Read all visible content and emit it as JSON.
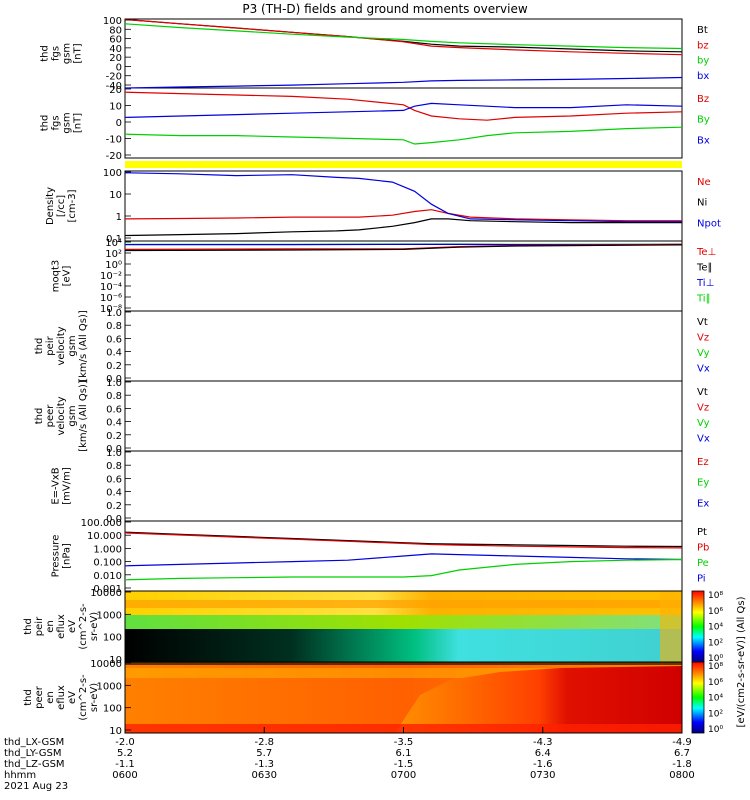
{
  "title": "P3 (TH-D) fields and ground moments overview",
  "colors": {
    "black": "#000000",
    "red": "#e00000",
    "green": "#00d000",
    "blue": "#0000e0",
    "yellow": "#ffff00",
    "axis": "#000000"
  },
  "time_axis": {
    "row_labels": [
      "thd_LX-GSM",
      "thd_LY-GSM",
      "thd_LZ-GSM",
      "hhmm"
    ],
    "date": "2021 Aug 23",
    "ticks": [
      {
        "lx": "-2.0",
        "ly": "5.2",
        "lz": "-1.1",
        "hhmm": "0600"
      },
      {
        "lx": "-2.8",
        "ly": "5.7",
        "lz": "-1.3",
        "hhmm": "0630"
      },
      {
        "lx": "-3.5",
        "ly": "6.1",
        "lz": "-1.5",
        "hhmm": "0700"
      },
      {
        "lx": "-4.3",
        "ly": "6.4",
        "lz": "-1.6",
        "hhmm": "0730"
      },
      {
        "lx": "-4.9",
        "ly": "6.7",
        "lz": "-1.8",
        "hhmm": "0800"
      }
    ]
  },
  "colorbar_label": "[eV/(cm2-s-sr-eV)] (All Qs)",
  "colorbar_ticks": [
    "10^0",
    "10^2",
    "10^4",
    "10^6",
    "10^8"
  ],
  "chart_data": [
    {
      "type": "line",
      "panel": "fgs",
      "ylabel_lines": [
        "thd",
        "fgs",
        "gsm",
        "[nT]"
      ],
      "ytick_labels": [
        "100",
        "80",
        "60",
        "40",
        "20",
        "0",
        "-20",
        "-40"
      ],
      "legend": [
        {
          "label": "Bt",
          "color": "#000000"
        },
        {
          "label": "bz",
          "color": "#e00000"
        },
        {
          "label": "by",
          "color": "#00d000"
        },
        {
          "label": "bx",
          "color": "#0000e0"
        }
      ],
      "ylim": [
        -40,
        105
      ],
      "x": [
        0,
        0.1,
        0.2,
        0.3,
        0.4,
        0.5,
        0.55,
        0.6,
        0.7,
        0.8,
        0.9,
        1.0
      ],
      "series": [
        {
          "color": "#000000",
          "values": [
            104,
            95,
            86,
            77,
            68,
            58,
            52,
            48,
            46,
            42,
            38,
            36
          ]
        },
        {
          "color": "#e00000",
          "values": [
            104,
            95,
            86,
            77,
            68,
            57,
            48,
            45,
            40,
            36,
            33,
            30
          ]
        },
        {
          "color": "#00d000",
          "values": [
            95,
            87,
            80,
            73,
            67,
            62,
            58,
            55,
            51,
            48,
            45,
            43
          ]
        },
        {
          "color": "#0000e0",
          "values": [
            -40,
            -38,
            -36,
            -34,
            -31,
            -28,
            -25,
            -24,
            -23,
            -22,
            -20,
            -18
          ]
        }
      ]
    },
    {
      "type": "line",
      "panel": "fgs-gsm",
      "ylabel_lines": [
        "thd",
        "fgs",
        "gsm",
        "[nT]"
      ],
      "ytick_labels": [
        "20",
        "10",
        "0",
        "-10",
        "-20"
      ],
      "legend": [
        {
          "label": "Bz",
          "color": "#e00000"
        },
        {
          "label": "By",
          "color": "#00d000"
        },
        {
          "label": "Bx",
          "color": "#0000e0"
        }
      ],
      "ylim": [
        -28,
        22
      ],
      "x": [
        0,
        0.1,
        0.2,
        0.3,
        0.4,
        0.5,
        0.52,
        0.55,
        0.6,
        0.65,
        0.7,
        0.8,
        0.9,
        1.0
      ],
      "series": [
        {
          "color": "#e00000",
          "values": [
            19,
            18,
            17,
            16,
            14,
            10,
            6,
            2,
            0,
            -1,
            1,
            2,
            4,
            5
          ]
        },
        {
          "color": "#00d000",
          "values": [
            -11,
            -12,
            -12,
            -13,
            -14,
            -15,
            -18,
            -17,
            -15,
            -12,
            -10,
            -9,
            -7,
            -6
          ]
        },
        {
          "color": "#0000e0",
          "values": [
            1,
            2,
            3,
            4,
            5,
            6,
            9,
            11,
            10,
            9,
            8,
            8,
            10,
            9
          ]
        }
      ]
    },
    {
      "type": "line",
      "panel": "density",
      "yscale": "log",
      "ylabel_lines": [
        "Density",
        "[/cc]",
        "[cm-3]"
      ],
      "ytick_labels": [
        "100",
        "10",
        "1",
        "0.1"
      ],
      "legend": [
        {
          "label": "Ne",
          "color": "#e00000"
        },
        {
          "label": "Ni",
          "color": "#000000"
        },
        {
          "label": "Npot",
          "color": "#0000e0"
        }
      ],
      "ylim_log10": [
        -1.5,
        2.3
      ],
      "x": [
        0,
        0.1,
        0.2,
        0.3,
        0.38,
        0.42,
        0.48,
        0.52,
        0.55,
        0.58,
        0.62,
        0.7,
        0.8,
        0.9,
        1.0
      ],
      "series": [
        {
          "color": "#000000",
          "log_values": [
            -1.2,
            -1.15,
            -1.1,
            -1.0,
            -0.95,
            -0.9,
            -0.7,
            -0.5,
            -0.3,
            -0.3,
            -0.4,
            -0.45,
            -0.5,
            -0.5,
            -0.5
          ]
        },
        {
          "color": "#e00000",
          "log_values": [
            -0.3,
            -0.28,
            -0.25,
            -0.2,
            -0.2,
            -0.2,
            -0.1,
            0.1,
            0.2,
            0.0,
            -0.2,
            -0.3,
            -0.35,
            -0.4,
            -0.4
          ]
        },
        {
          "color": "#0000e0",
          "log_values": [
            2.2,
            2.15,
            2.05,
            2.1,
            1.95,
            1.9,
            1.7,
            1.2,
            0.5,
            0.0,
            -0.3,
            -0.35,
            -0.4,
            -0.45,
            -0.45
          ]
        }
      ]
    },
    {
      "type": "line",
      "panel": "temperature",
      "yscale": "log",
      "ylabel_lines": [
        "moqt3",
        "[eV]"
      ],
      "ytick_labels": [
        "10^4",
        "10^2",
        "10^0",
        "10^-2",
        "10^-4",
        "10^-6",
        "10^-8"
      ],
      "legend": [
        {
          "label": "Te⊥",
          "color": "#e00000"
        },
        {
          "label": "Te∥",
          "color": "#000000"
        },
        {
          "label": "Ti⊥",
          "color": "#0000e0"
        },
        {
          "label": "Ti∥",
          "color": "#00d000"
        }
      ],
      "ylim_log10": [
        -8,
        4.5
      ],
      "x": [
        0,
        0.3,
        0.5,
        0.6,
        0.7,
        1.0
      ],
      "series": [
        {
          "color": "#00d000",
          "log_values": [
            3.9,
            3.9,
            3.95,
            3.95,
            3.9,
            3.9
          ]
        },
        {
          "color": "#0000e0",
          "log_values": [
            3.85,
            3.85,
            3.9,
            3.9,
            3.85,
            3.9
          ]
        },
        {
          "color": "#e00000",
          "log_values": [
            3.0,
            3.1,
            3.1,
            3.5,
            3.7,
            3.9
          ]
        },
        {
          "color": "#000000",
          "log_values": [
            2.8,
            2.9,
            3.0,
            3.4,
            3.6,
            3.8
          ]
        }
      ]
    },
    {
      "type": "line",
      "panel": "peir-velocity",
      "ylabel_lines": [
        "thd",
        "peir",
        "velocity",
        "gsm",
        "[km/s (All Qs)]"
      ],
      "ytick_labels": [
        "1.0",
        "0.8",
        "0.6",
        "0.4",
        "0.2",
        "0.0"
      ],
      "legend": [
        {
          "label": "Vt",
          "color": "#000000"
        },
        {
          "label": "Vz",
          "color": "#e00000"
        },
        {
          "label": "Vy",
          "color": "#00d000"
        },
        {
          "label": "Vx",
          "color": "#0000e0"
        }
      ],
      "ylim": [
        0,
        1
      ],
      "x": [],
      "series": []
    },
    {
      "type": "line",
      "panel": "peer-velocity",
      "ylabel_lines": [
        "thd",
        "peer",
        "velocity",
        "gsm",
        "[km/s (All Qs)]"
      ],
      "ytick_labels": [
        "1.0",
        "0.8",
        "0.6",
        "0.4",
        "0.2",
        "0.0"
      ],
      "legend": [
        {
          "label": "Vt",
          "color": "#000000"
        },
        {
          "label": "Vz",
          "color": "#e00000"
        },
        {
          "label": "Vy",
          "color": "#00d000"
        },
        {
          "label": "Vx",
          "color": "#0000e0"
        }
      ],
      "ylim": [
        0,
        1
      ],
      "x": [],
      "series": []
    },
    {
      "type": "line",
      "panel": "efield",
      "ylabel_lines": [
        "E=-VxB",
        "[mV/m]"
      ],
      "ytick_labels": [
        "1.0",
        "0.8",
        "0.6",
        "0.4",
        "0.2",
        "0.0"
      ],
      "legend": [
        {
          "label": "Ez",
          "color": "#e00000"
        },
        {
          "label": "Ey",
          "color": "#00d000"
        },
        {
          "label": "Ex",
          "color": "#0000e0"
        }
      ],
      "ylim": [
        0,
        1
      ],
      "x": [],
      "series": []
    },
    {
      "type": "line",
      "panel": "pressure",
      "yscale": "log",
      "ylabel_lines": [
        "Pressure",
        "[nPa]"
      ],
      "ytick_labels": [
        "100.000",
        "10.000",
        "1.000",
        "0.100",
        "0.010",
        "0.001"
      ],
      "legend": [
        {
          "label": "Pt",
          "color": "#000000"
        },
        {
          "label": "Pb",
          "color": "#e00000"
        },
        {
          "label": "Pe",
          "color": "#00d000"
        },
        {
          "label": "Pi",
          "color": "#0000e0"
        }
      ],
      "ylim_log10": [
        -3,
        2
      ],
      "x": [
        0,
        0.1,
        0.2,
        0.3,
        0.4,
        0.5,
        0.55,
        0.6,
        0.7,
        0.8,
        0.9,
        1.0
      ],
      "series": [
        {
          "color": "#000000",
          "log_values": [
            1.2,
            1.05,
            0.9,
            0.75,
            0.6,
            0.45,
            0.38,
            0.35,
            0.3,
            0.25,
            0.2,
            0.18
          ]
        },
        {
          "color": "#e00000",
          "log_values": [
            1.15,
            1.0,
            0.85,
            0.7,
            0.55,
            0.4,
            0.32,
            0.28,
            0.2,
            0.15,
            0.1,
            0.08
          ]
        },
        {
          "color": "#0000e0",
          "log_values": [
            -1.2,
            -1.1,
            -1.0,
            -0.9,
            -0.8,
            -0.5,
            -0.35,
            -0.4,
            -0.5,
            -0.6,
            -0.7,
            -0.75
          ]
        },
        {
          "color": "#00d000",
          "log_values": [
            -2.2,
            -2.1,
            -2.05,
            -2.0,
            -2.0,
            -2.0,
            -1.9,
            -1.5,
            -1.1,
            -0.9,
            -0.8,
            -0.75
          ]
        }
      ]
    },
    {
      "type": "heatmap",
      "panel": "peir-eflux",
      "ylabel_lines": [
        "thd",
        "peir",
        "en",
        "eflux",
        "eV",
        "(cm^2-s-",
        "sr-eV)"
      ],
      "ytick_labels": [
        "10000",
        "1000",
        "100",
        "10"
      ]
    },
    {
      "type": "heatmap",
      "panel": "peer-eflux",
      "ylabel_lines": [
        "thd",
        "peer",
        "en",
        "eflux",
        "eV",
        "(cm^2-s-",
        "sr-eV)"
      ],
      "ytick_labels": [
        "10000",
        "1000",
        "100",
        "10"
      ]
    }
  ]
}
